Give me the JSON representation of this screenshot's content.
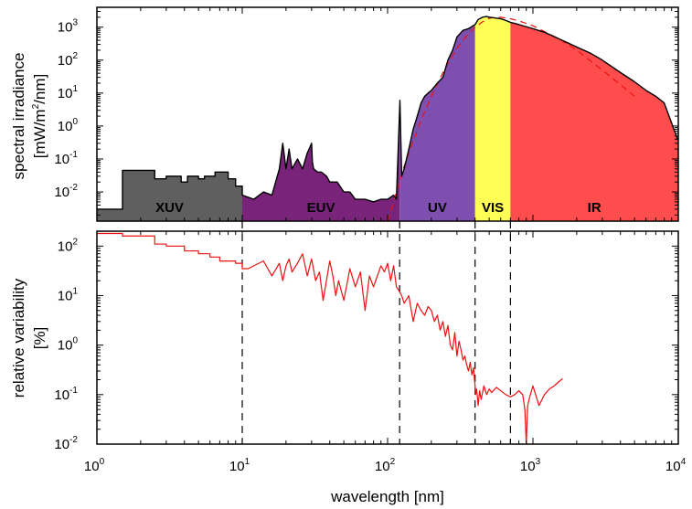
{
  "chart_data": [
    {
      "type": "area",
      "panel": "top",
      "ylabel_line1": "spectral irradiance",
      "ylabel_line2_prefix": "[mW/m",
      "ylabel_line2_sup": "2",
      "ylabel_line2_suffix": "/nm]",
      "x_scale": "log",
      "y_scale": "log",
      "xlim": [
        1,
        10000
      ],
      "ylim": [
        0.0013,
        4000
      ],
      "y_ticks": [
        {
          "base": "10",
          "exp": "-2",
          "value": 0.01
        },
        {
          "base": "10",
          "exp": "-1",
          "value": 0.1
        },
        {
          "base": "10",
          "exp": "0",
          "value": 1
        },
        {
          "base": "10",
          "exp": "1",
          "value": 10
        },
        {
          "base": "10",
          "exp": "2",
          "value": 100
        },
        {
          "base": "10",
          "exp": "3",
          "value": 1000
        }
      ],
      "bands": [
        {
          "label": "XUV",
          "range": [
            1,
            10
          ],
          "color": "#5f5f5f",
          "label_color": "#000000"
        },
        {
          "label": "EUV",
          "range": [
            10,
            121
          ],
          "color": "#7a237a",
          "label_color": "#000000"
        },
        {
          "label": "UV",
          "range": [
            121,
            400
          ],
          "color": "#7f4fb0",
          "label_color": "#000000"
        },
        {
          "label": "VIS",
          "range": [
            400,
            700
          ],
          "color": "#ffff55",
          "label_color": "#000000"
        },
        {
          "label": "IR",
          "range": [
            700,
            10000
          ],
          "color": "#ff4d4d",
          "label_color": "#000000"
        }
      ],
      "series": [
        {
          "style": "solid black",
          "x": [
            1,
            1.5,
            1.5,
            2.5,
            2.5,
            3,
            3,
            3.8,
            3.8,
            4.2,
            4.2,
            5,
            5,
            5.5,
            5.5,
            6.5,
            6.5,
            8,
            8,
            9,
            9,
            10,
            10,
            12,
            14,
            16,
            18,
            19,
            20,
            21,
            22,
            24,
            26,
            28,
            30,
            30.4,
            31,
            33,
            35,
            38,
            40,
            45,
            50,
            55,
            60,
            70,
            80,
            90,
            100,
            110,
            115,
            121.6,
            125,
            130,
            140,
            150,
            160,
            170,
            180,
            190,
            200,
            220,
            240,
            260,
            280,
            300,
            330,
            360,
            400,
            420,
            450,
            480,
            500,
            550,
            600,
            650,
            700,
            800,
            1000,
            1200,
            1500,
            2000,
            2500,
            3000,
            4000,
            5000,
            6000,
            7000,
            8000,
            10000
          ],
          "y": [
            0.003,
            0.003,
            0.045,
            0.045,
            0.025,
            0.025,
            0.03,
            0.03,
            0.02,
            0.02,
            0.03,
            0.03,
            0.025,
            0.025,
            0.03,
            0.03,
            0.04,
            0.04,
            0.025,
            0.025,
            0.015,
            0.015,
            0.008,
            0.006,
            0.01,
            0.008,
            0.05,
            0.3,
            0.05,
            0.2,
            0.05,
            0.1,
            0.05,
            0.15,
            0.3,
            0.08,
            0.05,
            0.04,
            0.04,
            0.03,
            0.02,
            0.02,
            0.01,
            0.01,
            0.006,
            0.006,
            0.005,
            0.006,
            0.006,
            0.008,
            0.006,
            6,
            0.03,
            0.05,
            0.2,
            0.8,
            2,
            5,
            8,
            10,
            12,
            20,
            30,
            100,
            200,
            500,
            800,
            900,
            1200,
            1700,
            2000,
            2100,
            2000,
            1900,
            1800,
            1600,
            1400,
            1200,
            900,
            700,
            450,
            250,
            160,
            100,
            42,
            22,
            12,
            8,
            5,
            0.35
          ]
        },
        {
          "style": "dashed red",
          "x": [
            100,
            110,
            120,
            130,
            150,
            170,
            200,
            250,
            300,
            350,
            400,
            450,
            500,
            550,
            600,
            700,
            800,
            1000,
            1500,
            2000,
            3000,
            4000,
            5000
          ],
          "y": [
            0.0013,
            0.005,
            0.02,
            0.06,
            0.35,
            1.5,
            8,
            60,
            230,
            550,
            1000,
            1450,
            1850,
            2000,
            2000,
            1800,
            1550,
            1100,
            450,
            200,
            50,
            18,
            8
          ]
        }
      ]
    },
    {
      "type": "line",
      "panel": "bottom",
      "xlabel": "wavelength [nm]",
      "ylabel_line1": "relative variability",
      "ylabel_line2": "[%]",
      "x_scale": "log",
      "y_scale": "log",
      "xlim": [
        1,
        10000
      ],
      "ylim": [
        0.01,
        200
      ],
      "x_ticks": [
        {
          "base": "10",
          "exp": "0",
          "value": 1
        },
        {
          "base": "10",
          "exp": "1",
          "value": 10
        },
        {
          "base": "10",
          "exp": "2",
          "value": 100
        },
        {
          "base": "10",
          "exp": "3",
          "value": 1000
        },
        {
          "base": "10",
          "exp": "4",
          "value": 10000
        }
      ],
      "y_ticks": [
        {
          "base": "10",
          "exp": "-2",
          "value": 0.01
        },
        {
          "base": "10",
          "exp": "-1",
          "value": 0.1
        },
        {
          "base": "10",
          "exp": "0",
          "value": 1
        },
        {
          "base": "10",
          "exp": "1",
          "value": 10
        },
        {
          "base": "10",
          "exp": "2",
          "value": 100
        }
      ],
      "band_boundaries": [
        10,
        121,
        400,
        700
      ],
      "series": [
        {
          "style": "solid red",
          "x": [
            1,
            1.5,
            1.5,
            2.5,
            2.5,
            3,
            3,
            4,
            4,
            5,
            5,
            6,
            6,
            7,
            7,
            9,
            9,
            10,
            10,
            11,
            12,
            14,
            16,
            18,
            19,
            20,
            21,
            22,
            24,
            26,
            28,
            30,
            32,
            34,
            36,
            40,
            42,
            44,
            46,
            50,
            55,
            60,
            65,
            70,
            75,
            80,
            90,
            95,
            100,
            105,
            110,
            115,
            121,
            125,
            130,
            140,
            150,
            160,
            170,
            180,
            190,
            200,
            210,
            220,
            230,
            240,
            250,
            260,
            270,
            280,
            290,
            300,
            310,
            320,
            330,
            340,
            350,
            360,
            370,
            380,
            390,
            395,
            400,
            403,
            410,
            420,
            430,
            440,
            460,
            480,
            500,
            520,
            560,
            600,
            650,
            700,
            750,
            800,
            850,
            880,
            900,
            920,
            950,
            1000,
            1100,
            1200,
            1300,
            1400,
            1500,
            1600
          ],
          "y": [
            180,
            180,
            160,
            160,
            110,
            110,
            100,
            100,
            80,
            80,
            70,
            70,
            60,
            60,
            50,
            50,
            45,
            45,
            35,
            35,
            40,
            50,
            25,
            45,
            20,
            40,
            55,
            30,
            45,
            70,
            25,
            55,
            20,
            30,
            8,
            50,
            25,
            10,
            20,
            8,
            35,
            15,
            30,
            5,
            25,
            15,
            40,
            30,
            45,
            20,
            40,
            15,
            12,
            10,
            7,
            10,
            3,
            7,
            5,
            4,
            6,
            5,
            3,
            4,
            2,
            3,
            1.5,
            2.5,
            1,
            0.8,
            1.8,
            0.6,
            1.2,
            0.8,
            0.5,
            0.6,
            0.4,
            0.3,
            0.45,
            0.25,
            0.35,
            0.22,
            0.15,
            0.1,
            0.13,
            0.06,
            0.12,
            0.08,
            0.15,
            0.1,
            0.13,
            0.11,
            0.14,
            0.12,
            0.1,
            0.09,
            0.1,
            0.12,
            0.1,
            0.05,
            0.01,
            0.06,
            0.09,
            0.15,
            0.06,
            0.1,
            0.13,
            0.15,
            0.18,
            0.21
          ]
        }
      ]
    }
  ]
}
